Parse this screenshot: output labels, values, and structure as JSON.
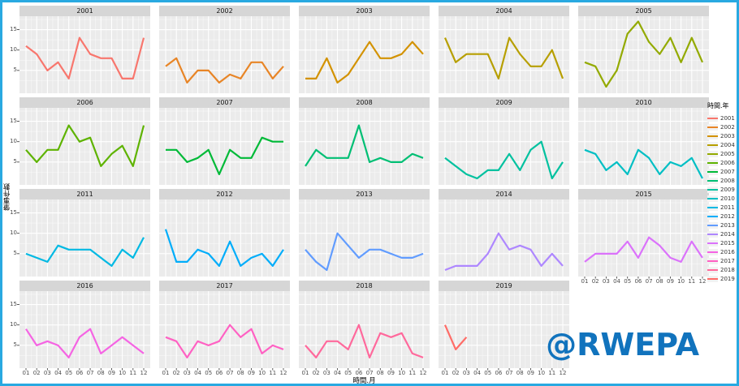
{
  "frame_color": "#29A9E1",
  "watermark": {
    "text": "@RWEPA",
    "color": "#1173BD"
  },
  "axes": {
    "y_title": "肇事件數",
    "x_title": "時間.月",
    "y_tick_labels": [
      "15",
      "10",
      "5"
    ],
    "x_tick_labels": [
      "01",
      "02",
      "03",
      "04",
      "05",
      "06",
      "07",
      "08",
      "09",
      "10",
      "11",
      "12"
    ]
  },
  "legend": {
    "title": "時間.年"
  },
  "chart_data": {
    "type": "line",
    "faceted_by": "時間.年",
    "x_label": "時間.月",
    "x": [
      1,
      2,
      3,
      4,
      5,
      6,
      7,
      8,
      9,
      10,
      11,
      12
    ],
    "x_tick_labels": [
      "01",
      "02",
      "03",
      "04",
      "05",
      "06",
      "07",
      "08",
      "09",
      "10",
      "11",
      "12"
    ],
    "ylim": [
      0,
      18
    ],
    "y_major_gridlines": [
      5,
      10,
      15
    ],
    "y_minor_gridlines": [
      2.5,
      7.5,
      12.5,
      17.5
    ],
    "grid": "on",
    "legend_position": "right",
    "facets": [
      {
        "year": "2001",
        "color": "#F8766D",
        "values": [
          11,
          9,
          5,
          7,
          3,
          13,
          9,
          8,
          8,
          3,
          3,
          13
        ]
      },
      {
        "year": "2002",
        "color": "#E88526",
        "values": [
          6,
          8,
          2,
          5,
          5,
          2,
          4,
          3,
          7,
          7,
          3,
          6
        ]
      },
      {
        "year": "2003",
        "color": "#D39200",
        "values": [
          3,
          3,
          8,
          2,
          4,
          8,
          12,
          8,
          8,
          9,
          12,
          9
        ]
      },
      {
        "year": "2004",
        "color": "#B79F00",
        "values": [
          13,
          7,
          9,
          9,
          9,
          3,
          13,
          9,
          6,
          6,
          10,
          3
        ]
      },
      {
        "year": "2005",
        "color": "#93AA00",
        "values": [
          7,
          6,
          1,
          5,
          14,
          17,
          12,
          9,
          13,
          7,
          13,
          7
        ]
      },
      {
        "year": "2006",
        "color": "#5EB300",
        "values": [
          8,
          5,
          8,
          8,
          14,
          10,
          11,
          4,
          7,
          9,
          4,
          14
        ]
      },
      {
        "year": "2007",
        "color": "#00BA38",
        "values": [
          8,
          8,
          5,
          6,
          8,
          2,
          8,
          6,
          6,
          11,
          10,
          10
        ]
      },
      {
        "year": "2008",
        "color": "#00BF74",
        "values": [
          4,
          8,
          6,
          6,
          6,
          14,
          5,
          6,
          5,
          5,
          7,
          6
        ]
      },
      {
        "year": "2009",
        "color": "#00C19F",
        "values": [
          6,
          4,
          2,
          1,
          3,
          3,
          7,
          3,
          8,
          10,
          1,
          5
        ]
      },
      {
        "year": "2010",
        "color": "#00BFC4",
        "values": [
          8,
          7,
          3,
          5,
          2,
          8,
          6,
          2,
          5,
          4,
          6,
          1
        ]
      },
      {
        "year": "2011",
        "color": "#00B9E3",
        "values": [
          5,
          4,
          3,
          7,
          6,
          6,
          6,
          4,
          2,
          6,
          4,
          9
        ]
      },
      {
        "year": "2012",
        "color": "#00ADFA",
        "values": [
          11,
          3,
          3,
          6,
          5,
          2,
          8,
          2,
          4,
          5,
          2,
          6
        ]
      },
      {
        "year": "2013",
        "color": "#619CFF",
        "values": [
          6,
          3,
          1,
          10,
          7,
          4,
          6,
          6,
          5,
          4,
          4,
          5
        ]
      },
      {
        "year": "2014",
        "color": "#AE87FF",
        "values": [
          1,
          2,
          2,
          2,
          5,
          10,
          6,
          7,
          6,
          2,
          5,
          2
        ]
      },
      {
        "year": "2015",
        "color": "#DB72FB",
        "values": [
          3,
          5,
          5,
          5,
          8,
          4,
          9,
          7,
          4,
          3,
          8,
          4
        ]
      },
      {
        "year": "2016",
        "color": "#F564E3",
        "values": [
          9,
          5,
          6,
          5,
          2,
          7,
          9,
          3,
          5,
          7,
          5,
          3
        ]
      },
      {
        "year": "2017",
        "color": "#FF61C3",
        "values": [
          7,
          6,
          2,
          6,
          5,
          6,
          10,
          7,
          9,
          3,
          5,
          4
        ]
      },
      {
        "year": "2018",
        "color": "#FF699C",
        "values": [
          5,
          2,
          6,
          6,
          4,
          10,
          2,
          8,
          7,
          8,
          3,
          2
        ]
      },
      {
        "year": "2019",
        "color": "#FF6C67",
        "values": [
          10,
          4,
          7
        ]
      }
    ]
  }
}
